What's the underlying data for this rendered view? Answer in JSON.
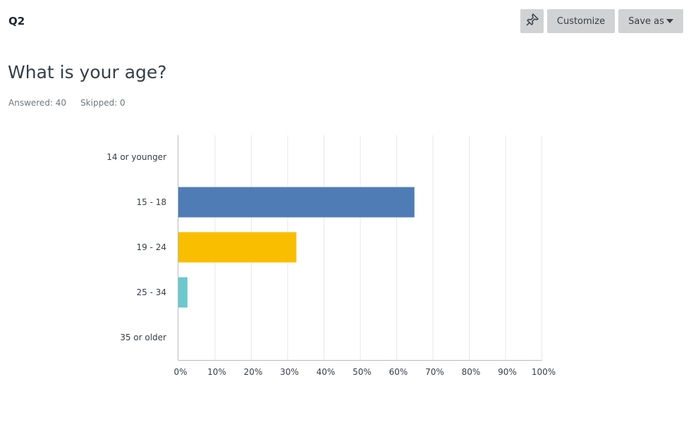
{
  "question": {
    "number": "Q2",
    "title": "What is your age?",
    "answered_label": "Answered: 40",
    "skipped_label": "Skipped: 0"
  },
  "toolbar": {
    "pin_icon": "pin-icon",
    "customize_label": "Customize",
    "save_as_label": "Save as"
  },
  "chart_data": {
    "type": "bar",
    "orientation": "horizontal",
    "categories": [
      "14 or younger",
      "15 - 18",
      "19 - 24",
      "25 - 34",
      "35 or older"
    ],
    "values": [
      0,
      65,
      32.5,
      2.5,
      0
    ],
    "colors": [
      "#507cb6",
      "#507cb6",
      "#f9be00",
      "#6bc8cd",
      "#507cb6"
    ],
    "xlim": [
      0,
      100
    ],
    "xticks": [
      "0%",
      "10%",
      "20%",
      "30%",
      "40%",
      "50%",
      "60%",
      "70%",
      "80%",
      "90%",
      "100%"
    ],
    "grid": true
  }
}
